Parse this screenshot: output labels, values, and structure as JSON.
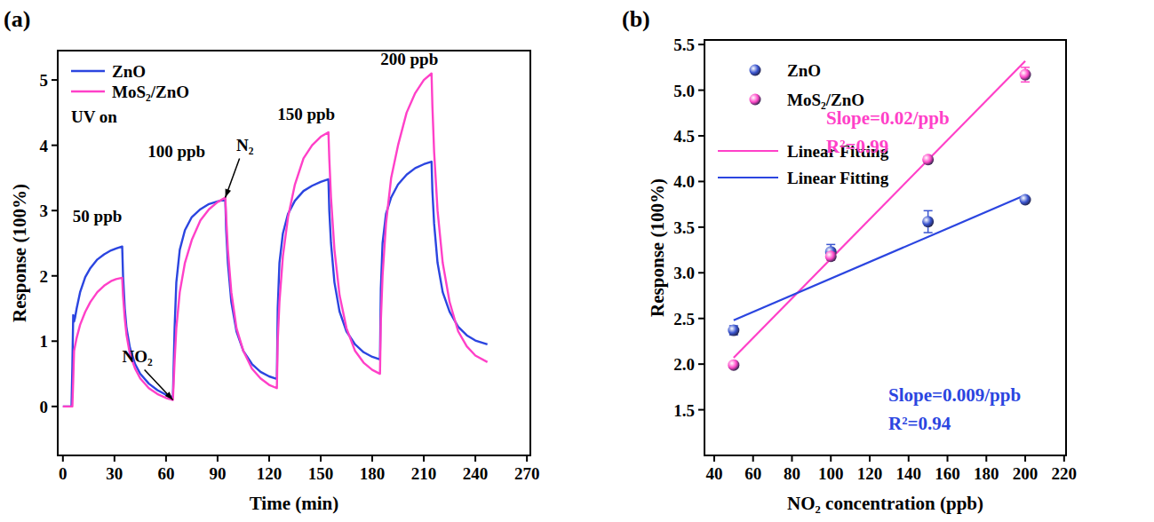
{
  "chart_data": [
    {
      "type": "line",
      "title": "(a)",
      "x_label": "Time (min)",
      "y_label": "Response (100%)",
      "xlim": [
        -3,
        272
      ],
      "ylim": [
        -0.75,
        5.45
      ],
      "xticks": [
        0,
        30,
        60,
        90,
        120,
        150,
        180,
        210,
        240,
        270
      ],
      "yticks": [
        0,
        1,
        2,
        3,
        4,
        5
      ],
      "legend": "upper left",
      "x": [
        0,
        2,
        5,
        5.5,
        6,
        6.5,
        7,
        8,
        10,
        13,
        16,
        20,
        24,
        28,
        31,
        34.5,
        35,
        36,
        37,
        39,
        42,
        45,
        50,
        55,
        60,
        64,
        65,
        66,
        68,
        71,
        75,
        80,
        85,
        90,
        94.5,
        95,
        96,
        98,
        101,
        105,
        110,
        115,
        120,
        124.5,
        125,
        126,
        128,
        131,
        135,
        140,
        145,
        150,
        154.5,
        155,
        156,
        158,
        161,
        165,
        170,
        175,
        180,
        184.5,
        185,
        186,
        188,
        191,
        195,
        200,
        205,
        210,
        214.5,
        215,
        216,
        218,
        221,
        225,
        230,
        235,
        240,
        247
      ],
      "series": [
        {
          "name": "ZnO",
          "color": "#2b45e0",
          "line_style": "solid",
          "values": [
            0,
            0,
            0,
            0.6,
            1.4,
            1.3,
            1.35,
            1.5,
            1.75,
            1.98,
            2.12,
            2.25,
            2.33,
            2.39,
            2.42,
            2.45,
            2.0,
            1.5,
            1.2,
            0.9,
            0.65,
            0.5,
            0.35,
            0.25,
            0.18,
            0.14,
            1.2,
            1.9,
            2.4,
            2.7,
            2.9,
            3.02,
            3.1,
            3.14,
            3.17,
            2.7,
            2.2,
            1.6,
            1.15,
            0.85,
            0.65,
            0.53,
            0.46,
            0.42,
            1.5,
            2.2,
            2.65,
            2.95,
            3.15,
            3.3,
            3.38,
            3.44,
            3.48,
            3.0,
            2.5,
            1.9,
            1.45,
            1.15,
            0.95,
            0.83,
            0.76,
            0.72,
            1.8,
            2.5,
            2.95,
            3.2,
            3.4,
            3.55,
            3.65,
            3.71,
            3.75,
            3.3,
            2.8,
            2.2,
            1.75,
            1.45,
            1.22,
            1.09,
            1.01,
            0.95
          ]
        },
        {
          "name": "MoS₂/ZnO",
          "color": "#ff40c8",
          "line_style": "solid",
          "values": [
            0,
            0,
            0,
            0,
            0.4,
            0.85,
            0.92,
            1.05,
            1.25,
            1.45,
            1.6,
            1.75,
            1.85,
            1.92,
            1.95,
            1.97,
            1.7,
            1.35,
            1.1,
            0.8,
            0.58,
            0.43,
            0.28,
            0.19,
            0.13,
            0.1,
            0.7,
            1.2,
            1.75,
            2.2,
            2.55,
            2.85,
            3.02,
            3.13,
            3.2,
            2.9,
            2.4,
            1.75,
            1.2,
            0.85,
            0.58,
            0.43,
            0.33,
            0.28,
            1.0,
            1.6,
            2.3,
            2.9,
            3.4,
            3.8,
            4.0,
            4.13,
            4.2,
            3.8,
            3.2,
            2.4,
            1.7,
            1.2,
            0.85,
            0.67,
            0.56,
            0.5,
            1.3,
            2.0,
            2.8,
            3.5,
            4.0,
            4.5,
            4.8,
            5.0,
            5.1,
            4.6,
            3.9,
            3.0,
            2.2,
            1.6,
            1.15,
            0.92,
            0.78,
            0.68
          ]
        }
      ],
      "annotations": [
        {
          "text": "50 ppb"
        },
        {
          "text": "100 ppb"
        },
        {
          "text": "150 ppb"
        },
        {
          "text": "200 ppb"
        },
        {
          "text": "N₂"
        },
        {
          "text": "NO₂"
        },
        {
          "text": "UV on"
        }
      ]
    },
    {
      "type": "scatter",
      "title": "(b)",
      "x_label": "NO₂ concentration (ppb)",
      "y_label": "Response (100%)",
      "xlim": [
        35,
        221
      ],
      "ylim": [
        1.0,
        5.55
      ],
      "xticks": [
        40,
        60,
        80,
        100,
        120,
        140,
        160,
        180,
        200,
        220
      ],
      "yticks": [
        1.5,
        {
          "value": 2,
          "label": "2.0"
        },
        2.5,
        {
          "value": 3,
          "label": "3.0"
        },
        3.5,
        {
          "value": 4,
          "label": "4.0"
        },
        4.5,
        {
          "value": 5,
          "label": "5.0"
        },
        5.5
      ],
      "legend": "upper left",
      "series": [
        {
          "name": "ZnO",
          "type": "scatter",
          "marker": "circle",
          "color": "#3a55d0",
          "x": [
            50,
            100,
            150,
            200
          ],
          "values": [
            2.37,
            3.23,
            3.56,
            3.8
          ],
          "errors": [
            0.05,
            0.08,
            0.12,
            0.03
          ]
        },
        {
          "name": "MoS₂/ZnO",
          "type": "scatter",
          "marker": "circle",
          "color": "#ff48c8",
          "x": [
            50,
            100,
            150,
            200
          ],
          "values": [
            1.99,
            3.18,
            4.24,
            5.17
          ],
          "errors": [
            0.03,
            0.04,
            0.03,
            0.08
          ]
        },
        {
          "name": "Linear Fitting",
          "type": "line",
          "line_style": "solid",
          "color": "#ff40c8",
          "x": [
            50,
            200
          ],
          "values": [
            2.07,
            5.32
          ]
        },
        {
          "name": "Linear Fitting",
          "type": "line",
          "line_style": "solid",
          "color": "#2b45e0",
          "x": [
            50,
            200
          ],
          "values": [
            2.48,
            3.85
          ]
        }
      ],
      "annotations": [
        {
          "text": "Slope=0.02/ppb",
          "color": "#ff40c8"
        },
        {
          "text": "R²=0.99",
          "color": "#ff40c8"
        },
        {
          "text": "Slope=0.009/ppb",
          "color": "#2b45e0"
        },
        {
          "text": "R²=0.94",
          "color": "#2b45e0"
        }
      ]
    }
  ]
}
